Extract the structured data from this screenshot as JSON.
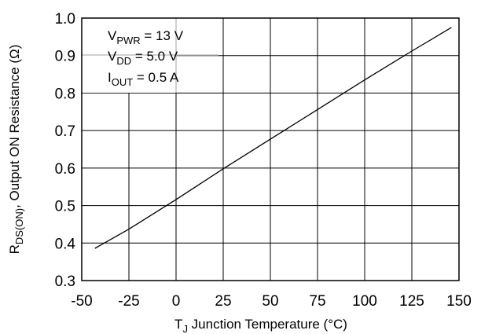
{
  "chart_data": {
    "type": "line",
    "xlabel": {
      "prefix": "T",
      "sub": "J",
      "rest": " Junction Temperature (°C)"
    },
    "ylabel": {
      "prefix": "R",
      "sub": "DS(ON)",
      "rest": ", Output ON Resistance (Ω)"
    },
    "xlim": [
      -50,
      150
    ],
    "ylim": [
      0.3,
      1.0
    ],
    "x_ticks": [
      -50,
      -25,
      0,
      25,
      50,
      75,
      100,
      125,
      150
    ],
    "x_tick_labels": [
      "-50",
      "-25",
      "0",
      "25",
      "50",
      "75",
      "100",
      "125",
      "150"
    ],
    "y_ticks": [
      0.3,
      0.4,
      0.5,
      0.6,
      0.7,
      0.8,
      0.9,
      1.0
    ],
    "y_tick_labels": [
      "0.3",
      "0.4",
      "0.5",
      "0.6",
      "0.7",
      "0.8",
      "0.9",
      "1.0"
    ],
    "grid": true,
    "series": [
      {
        "x": [
          -43,
          -25,
          0,
          25,
          50,
          75,
          100,
          125,
          146
        ],
        "y": [
          0.386,
          0.437,
          0.516,
          0.598,
          0.677,
          0.756,
          0.835,
          0.912,
          0.975
        ]
      }
    ],
    "annotations": [
      {
        "main": "V",
        "sub": "PWR",
        "rest": " = 13 V"
      },
      {
        "main": "V",
        "sub": "DD",
        "rest": " = 5.0 V"
      },
      {
        "main": "I",
        "sub": "OUT",
        "rest": " = 0.5 A"
      }
    ]
  }
}
